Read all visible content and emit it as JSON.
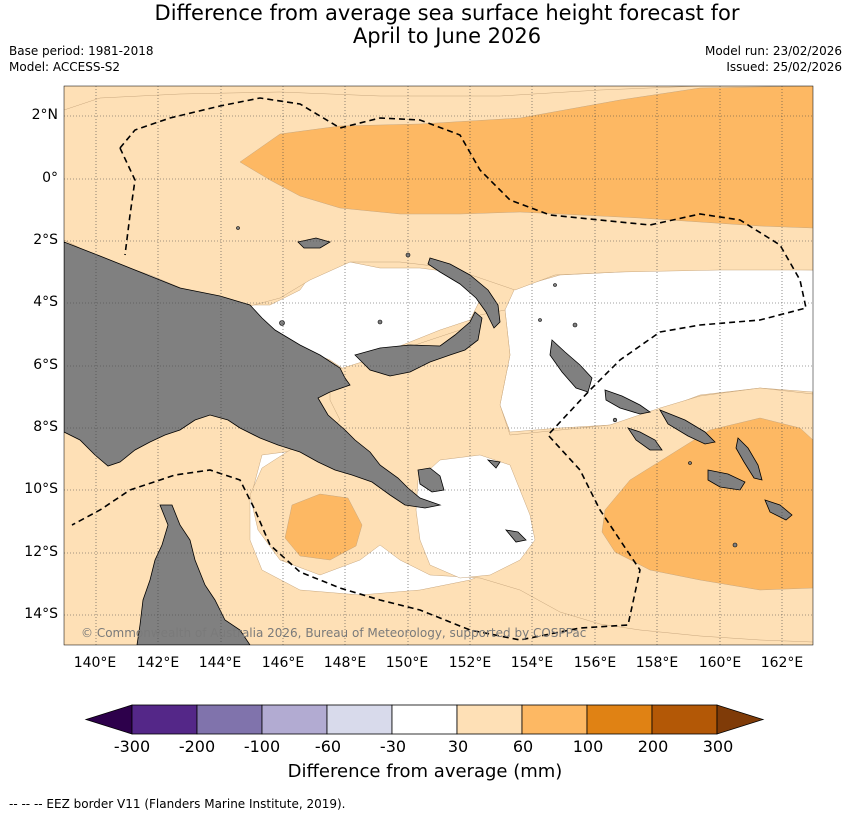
{
  "title": {
    "line1": "Difference from average sea surface height forecast for",
    "line2": "April to June 2026"
  },
  "meta": {
    "base_period": "Base period: 1981-2018",
    "model": "Model: ACCESS-S2",
    "model_run": "Model run: 23/02/2026",
    "issued": "Issued: 25/02/2026"
  },
  "map": {
    "latitude_labels": [
      "2°N",
      "0°",
      "2°S",
      "4°S",
      "6°S",
      "8°S",
      "10°S",
      "12°S",
      "14°S"
    ],
    "longitude_labels": [
      "140°E",
      "142°E",
      "144°E",
      "146°E",
      "148°E",
      "150°E",
      "152°E",
      "154°E",
      "156°E",
      "158°E",
      "160°E",
      "162°E"
    ],
    "lon_range": [
      139,
      163
    ],
    "lat_range": [
      -15,
      3
    ],
    "copyright": "© Commonwealth of Australia 2026, Bureau of Meteorology, supported by COSPPac",
    "land_color": "#808080",
    "gridline_style": "dotted"
  },
  "colorbar": {
    "title": "Difference from average (mm)",
    "labels": [
      "-300",
      "-200",
      "-100",
      "-60",
      "-30",
      "30",
      "60",
      "100",
      "200",
      "300"
    ],
    "colors": [
      "#2d004b",
      "#542788",
      "#8073ac",
      "#b2abd2",
      "#d8daeb",
      "#ffffff",
      "#fee0b6",
      "#fdb863",
      "#e08214",
      "#b35806",
      "#7f3b08"
    ]
  },
  "footnote": "--  --  -- EEZ border V11 (Flanders Marine Institute, 2019)."
}
